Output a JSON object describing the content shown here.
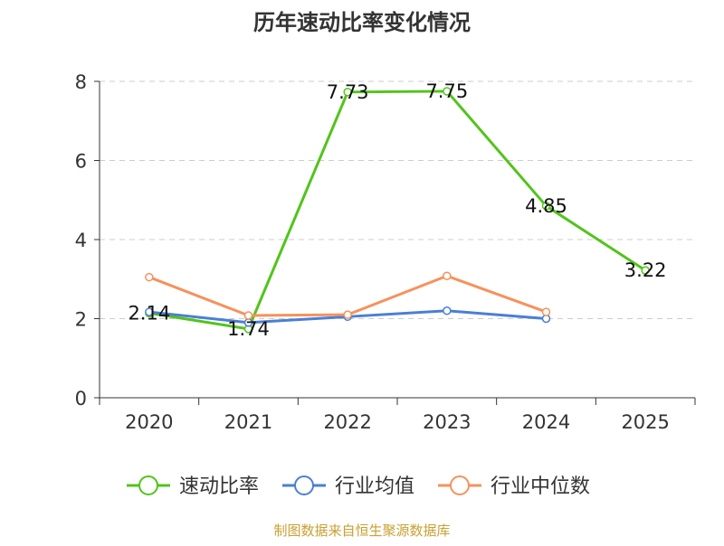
{
  "chart_data": {
    "type": "line",
    "title": "历年速动比率变化情况",
    "categories": [
      "2020",
      "2021",
      "2022",
      "2023",
      "2024",
      "2025"
    ],
    "ylim": [
      0,
      8
    ],
    "yticks": [
      0,
      2,
      4,
      6,
      8
    ],
    "grid": true,
    "legend_position": "bottom-center",
    "series": [
      {
        "name": "速动比率",
        "color": "#52c41a",
        "values": [
          2.14,
          1.74,
          7.73,
          7.75,
          4.85,
          3.22
        ],
        "labels": [
          "2.14",
          "1.74",
          "7.73",
          "7.75",
          "4.85",
          "3.22"
        ],
        "show_labels": true
      },
      {
        "name": "行业均值",
        "color": "#4a7fd6",
        "values": [
          2.17,
          1.9,
          2.05,
          2.2,
          2.0,
          null
        ],
        "show_labels": false
      },
      {
        "name": "行业中位数",
        "color": "#f5925c",
        "values": [
          3.05,
          2.08,
          2.1,
          3.08,
          2.17,
          null
        ],
        "show_labels": false
      }
    ]
  },
  "source_note": "制图数据来自恒生聚源数据库",
  "colors": {
    "axis": "#333333",
    "grid": "#cccccc",
    "source": "#c8a032"
  }
}
